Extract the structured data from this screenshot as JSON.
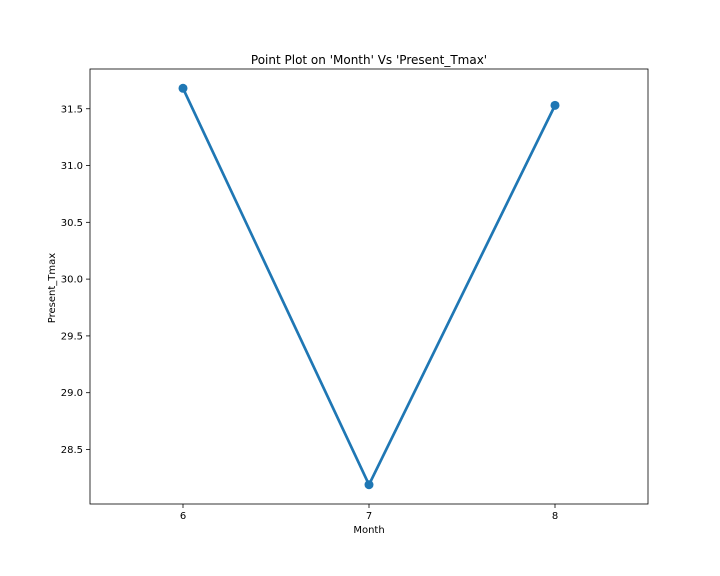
{
  "chart_data": {
    "type": "line",
    "title": "Point Plot on 'Month' Vs 'Present_Tmax'",
    "xlabel": "Month",
    "ylabel": "Present_Tmax",
    "categories": [
      "6",
      "7",
      "8"
    ],
    "series": [
      {
        "values": [
          31.68,
          28.19,
          31.53
        ],
        "color": "#1f77b4"
      }
    ],
    "yticks": [
      28.5,
      29.0,
      29.5,
      30.0,
      30.5,
      31.0,
      31.5
    ],
    "ytick_labels": [
      "28.5",
      "29.0",
      "29.5",
      "30.0",
      "30.5",
      "31.0",
      "31.5"
    ],
    "ylim": [
      28.02,
      31.85
    ],
    "grid": false,
    "legend": "none"
  }
}
